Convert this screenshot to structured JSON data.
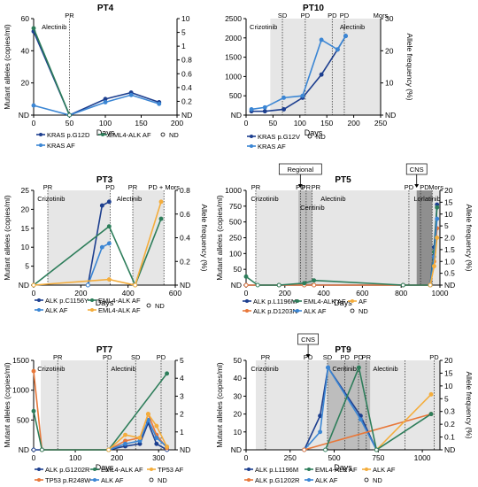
{
  "colors": {
    "navy": "#1d3f8f",
    "blue": "#3b86d4",
    "green": "#2d7d5a",
    "orange": "#e8783a",
    "light_orange": "#f4ad3c",
    "bg_light": "#e6e6e6",
    "bg_dark": "#bdbdbd",
    "bg_darker": "#8f8f8f"
  },
  "chart_data": [
    {
      "id": "pt4",
      "type": "line",
      "title": "PT4",
      "xlabel": "Days",
      "ylabel": "Mutant alleles (copies/ml)",
      "y2label": "",
      "xlim": [
        0,
        200
      ],
      "xticks": [
        "0",
        "50",
        "100",
        "150",
        "200"
      ],
      "ylim": [
        0,
        60
      ],
      "yticks": [
        "ND",
        "20",
        "40",
        "60"
      ],
      "y2ticks": [
        "ND",
        "0.2",
        "0.4",
        "0.6",
        "0.8",
        "1",
        "5",
        "10"
      ],
      "annotations": [
        "PR",
        "Alectinib"
      ],
      "series": [
        {
          "name": "KRAS p.G12D",
          "color": "navy",
          "x": [
            0,
            50,
            100,
            136,
            175
          ],
          "values": [
            52,
            0,
            10,
            14,
            8
          ]
        },
        {
          "name": "KRAS AF",
          "color": "blue",
          "x": [
            0,
            50,
            100,
            136,
            175
          ],
          "values": [
            6,
            0,
            8,
            12.5,
            7
          ]
        },
        {
          "name": "EML4-ALK AF",
          "color": "green",
          "x": [
            0,
            50
          ],
          "values": [
            54,
            0
          ]
        }
      ],
      "legend": [
        "KRAS p.G12D",
        "EML4-ALK AF",
        "ND",
        "KRAS AF"
      ]
    },
    {
      "id": "pt10",
      "type": "line",
      "title": "PT10",
      "xlabel": "Days",
      "ylabel": "",
      "y2label": "Allele frequency (%)",
      "xlim": [
        0,
        250
      ],
      "xticks": [
        "0",
        "50",
        "100",
        "150",
        "200",
        "250"
      ],
      "ylim": [
        0,
        2500
      ],
      "yticks": [
        "ND",
        "500",
        "1000",
        "1500",
        "2000",
        "2500"
      ],
      "y2ticks": [
        "ND",
        "10",
        "20",
        "30"
      ],
      "annotations": [
        "SD",
        "PD",
        "PD",
        "PD",
        "Mors",
        "Crizotinib",
        "Alectinib"
      ],
      "series": [
        {
          "name": "KRAS p.G12V",
          "color": "navy",
          "x": [
            10,
            35,
            70,
            105,
            140,
            170,
            185
          ],
          "values": [
            100,
            100,
            150,
            450,
            1050,
            1700,
            2050
          ]
        },
        {
          "name": "KRAS AF",
          "color": "blue",
          "x": [
            10,
            35,
            70,
            105,
            140,
            170,
            185
          ],
          "values": [
            150,
            200,
            450,
            500,
            1950,
            1700,
            2050
          ]
        }
      ],
      "legend": [
        "KRAS p.G12V",
        "ND",
        "KRAS AF"
      ]
    },
    {
      "id": "pt3",
      "type": "line",
      "title": "PT3",
      "xlabel": "Days",
      "ylabel": "Mutant alleles (copies/ml)",
      "y2label": "Allele frequency (%)",
      "xlim": [
        0,
        600
      ],
      "xticks": [
        "0",
        "200",
        "400",
        "600"
      ],
      "ylim": [
        0,
        25
      ],
      "yticks": [
        "ND",
        "5",
        "10",
        "15",
        "20",
        "25"
      ],
      "y2ticks": [
        "ND",
        "0.2",
        "0.4",
        "0.6",
        "0.8"
      ],
      "annotations": [
        "PR",
        "PD",
        "PR",
        "PD + Mors",
        "Crizotinib",
        "Alectinib"
      ],
      "series": [
        {
          "name": "ALK p.C1156Y",
          "color": "navy",
          "x": [
            230,
            290,
            320
          ],
          "values": [
            0,
            21,
            22
          ]
        },
        {
          "name": "ALK AF",
          "color": "blue",
          "x": [
            230,
            290,
            320
          ],
          "values": [
            0,
            10,
            11
          ]
        },
        {
          "name": "EML4-ALK AF",
          "color": "green",
          "x": [
            0,
            320,
            430,
            540
          ],
          "values": [
            0,
            15.5,
            0,
            17.5
          ]
        },
        {
          "name": "EML4-ALK AF",
          "color": "light_orange",
          "x": [
            0,
            320,
            430,
            540
          ],
          "values": [
            0,
            1.5,
            0,
            22
          ]
        }
      ],
      "legend": [
        "ALK p.C1156Y",
        "ALK AF",
        "EML4-ALK AF",
        "EML4-ALK AF",
        "ND"
      ]
    },
    {
      "id": "pt5",
      "type": "line",
      "title": "PT5",
      "xlabel": "Days",
      "ylabel": "Mutant alleles (copies/ml)",
      "y2label": "Allele frequency (%)",
      "xlim": [
        0,
        1000
      ],
      "xticks": [
        "0",
        "200",
        "400",
        "600",
        "800",
        "1000"
      ],
      "ylim": [
        0,
        1000
      ],
      "yticks": [
        "ND",
        "50",
        "100",
        "250",
        "500",
        "750",
        "1000"
      ],
      "y2ticks": [
        "ND",
        "0.5",
        "1.0",
        "1.5",
        "2.0",
        "5",
        "10",
        "15",
        "20"
      ],
      "annotations": [
        "PR",
        "PD",
        "PR",
        "PR",
        "PD",
        "PD",
        "Mors",
        "Crizotinib",
        "Ceritinib",
        "Alectinib",
        "Lorlatinib",
        "Regional",
        "CNS"
      ],
      "series": [
        {
          "name": "ALK p.L1196M",
          "color": "navy",
          "x": [
            0,
            170,
            300,
            350,
            810,
            950,
            970,
            985
          ],
          "values": [
            0,
            0,
            0,
            0,
            0,
            0,
            400,
            850
          ]
        },
        {
          "name": "ALK p.D1203N",
          "color": "orange",
          "x": [
            0,
            170,
            300,
            350,
            810,
            950,
            970,
            985
          ],
          "values": [
            0,
            0,
            0,
            0,
            0,
            0,
            250,
            600
          ]
        },
        {
          "name": "EML4-ALK AF",
          "color": "green",
          "x": [
            0,
            60,
            170,
            300,
            350,
            810,
            950,
            970,
            985
          ],
          "values": [
            90,
            0,
            0,
            20,
            50,
            0,
            0,
            350,
            820
          ]
        },
        {
          "name": "ALK AF",
          "color": "blue",
          "x": [
            950,
            970,
            985
          ],
          "values": [
            0,
            300,
            700
          ]
        },
        {
          "name": "AF",
          "color": "light_orange",
          "x": [
            950,
            970,
            985
          ],
          "values": [
            0,
            200,
            500
          ]
        }
      ],
      "legend": [
        "ALK p.L1196M",
        "ALK p.D1203N",
        "EML4-ALK AF",
        "ALK AF",
        "AF",
        "ND"
      ]
    },
    {
      "id": "pt7",
      "type": "line",
      "title": "PT7",
      "xlabel": "Days",
      "ylabel": "Mutant alleles (copies/ml)",
      "y2label": "",
      "xlim": [
        0,
        340
      ],
      "xticks": [
        "0",
        "100",
        "200",
        "300"
      ],
      "ylim": [
        0,
        1500
      ],
      "yticks": [
        "ND",
        "500",
        "1000",
        "1500"
      ],
      "y2ticks": [
        "ND",
        "1",
        "2",
        "3",
        "4",
        "5"
      ],
      "annotations": [
        "PR",
        "PD",
        "SD",
        "PD",
        "Crizotinib",
        "Alectinib"
      ],
      "series": [
        {
          "name": "ALK p.G1202R",
          "color": "navy",
          "x": [
            0,
            20,
            180,
            220,
            255,
            275,
            295,
            320
          ],
          "values": [
            0,
            0,
            0,
            60,
            100,
            450,
            100,
            0
          ]
        },
        {
          "name": "TP53 p.R248W",
          "color": "orange",
          "x": [
            0,
            20,
            180,
            220,
            255,
            275,
            295,
            320
          ],
          "values": [
            1320,
            0,
            0,
            150,
            200,
            600,
            250,
            30
          ]
        },
        {
          "name": "EML4-ALK AF",
          "color": "green",
          "x": [
            0,
            20,
            180,
            320
          ],
          "values": [
            650,
            0,
            0,
            1280
          ]
        },
        {
          "name": "ALK AF",
          "color": "blue",
          "x": [
            180,
            220,
            255,
            275,
            295,
            320
          ],
          "values": [
            0,
            100,
            150,
            500,
            200,
            50
          ]
        },
        {
          "name": "TP53 AF",
          "color": "light_orange",
          "x": [
            180,
            220,
            255,
            275,
            295,
            320
          ],
          "values": [
            0,
            250,
            200,
            600,
            400,
            50
          ]
        }
      ],
      "legend": [
        "ALK p.G1202R",
        "TP53 p.R248W",
        "EML4-ALK AF",
        "ALK AF",
        "TP53 AF",
        "ND"
      ]
    },
    {
      "id": "pt9",
      "type": "line",
      "title": "PT9",
      "xlabel": "Days",
      "ylabel": "Mutant alleles (copies/ml)",
      "y2label": "Allele frequency (%)",
      "xlim": [
        0,
        1100
      ],
      "xticks": [
        "0",
        "250",
        "500",
        "750",
        "1000"
      ],
      "ylim": [
        0,
        50
      ],
      "yticks": [
        "ND",
        "10",
        "20",
        "30",
        "40",
        "50"
      ],
      "y2ticks": [
        "ND",
        "0.1",
        "0.2",
        "0.3",
        "5",
        "10",
        "15",
        "20"
      ],
      "annotations": [
        "PR",
        "PD",
        "SD",
        "PD",
        "PD",
        "PR",
        "PD",
        "Crizotinib",
        "Ceritinib",
        "Alectinib",
        "CNS"
      ],
      "series": [
        {
          "name": "ALK p.L1196M",
          "color": "navy",
          "x": [
            330,
            420,
            465,
            650,
            740
          ],
          "values": [
            0,
            19,
            46,
            19,
            0
          ]
        },
        {
          "name": "ALK AF",
          "color": "blue",
          "x": [
            330,
            420,
            465,
            650,
            740
          ],
          "values": [
            0,
            10,
            46,
            17,
            0
          ]
        },
        {
          "name": "ALK p.G1202R",
          "color": "orange",
          "x": [
            330,
            1050
          ],
          "values": [
            0,
            20
          ]
        },
        {
          "name": "ALK AF",
          "color": "light_orange",
          "x": [
            740,
            1050
          ],
          "values": [
            0,
            31
          ]
        },
        {
          "name": "EML4-ALK AF",
          "color": "green",
          "x": [
            450,
            640,
            740,
            1050
          ],
          "values": [
            0,
            46,
            0,
            20
          ]
        }
      ],
      "legend": [
        "ALK p.L1196M",
        "ALK p.G1202R",
        "EML4-ALK AF",
        "ALK AF",
        "ALK AF",
        "ND"
      ]
    }
  ]
}
